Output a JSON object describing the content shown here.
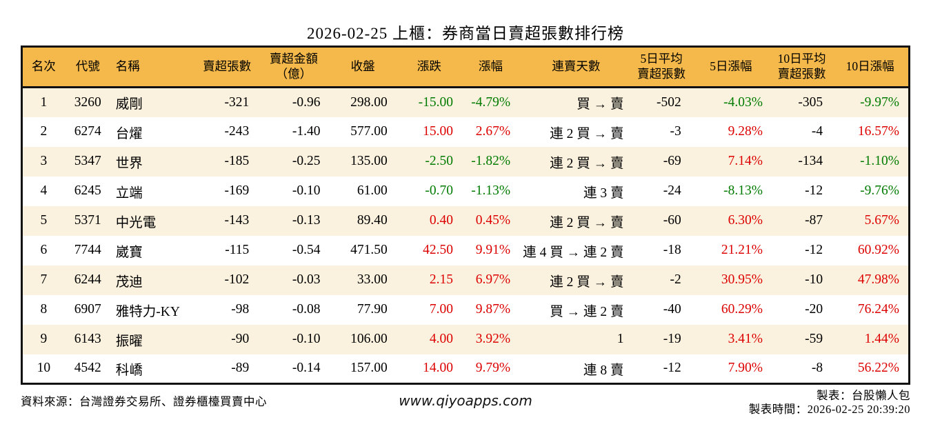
{
  "title": "2026-02-25 上櫃：券商當日賣超張數排行榜",
  "colors": {
    "header_bg": "#F4B94A",
    "alt_row_bg": "#FAF2DE",
    "up_red": "#DD0000",
    "down_green": "#007B00",
    "table_border": "#111111"
  },
  "table": {
    "columns": [
      {
        "label": "名次"
      },
      {
        "label": "代號"
      },
      {
        "label": "名稱"
      },
      {
        "label": "賣超張數"
      },
      {
        "label": "賣超金額\n（億）"
      },
      {
        "label": "收盤"
      },
      {
        "label": "漲跌"
      },
      {
        "label": "漲幅"
      },
      {
        "label": "連賣天數"
      },
      {
        "label": "5日平均\n賣超張數"
      },
      {
        "label": "5日漲幅"
      },
      {
        "label": "10日平均\n賣超張數"
      },
      {
        "label": "10日漲幅"
      }
    ],
    "rows": [
      {
        "rank": "1",
        "code": "3260",
        "name": "威剛",
        "net_sell": "-321",
        "net_sell_amount": "-0.96",
        "close": "298.00",
        "change": {
          "text": "-15.00",
          "color": "green"
        },
        "change_pct": {
          "text": "-4.79%",
          "color": "green"
        },
        "consecutive": "買 → 賣",
        "avg5_net_sell": "-502",
        "change5_pct": {
          "text": "-4.03%",
          "color": "green"
        },
        "avg10_net_sell": "-305",
        "change10_pct": {
          "text": "-9.97%",
          "color": "green"
        }
      },
      {
        "rank": "2",
        "code": "6274",
        "name": "台燿",
        "net_sell": "-243",
        "net_sell_amount": "-1.40",
        "close": "577.00",
        "change": {
          "text": "15.00",
          "color": "red"
        },
        "change_pct": {
          "text": "2.67%",
          "color": "red"
        },
        "consecutive": "連 2 買 → 賣",
        "avg5_net_sell": "-3",
        "change5_pct": {
          "text": "9.28%",
          "color": "red"
        },
        "avg10_net_sell": "-4",
        "change10_pct": {
          "text": "16.57%",
          "color": "red"
        }
      },
      {
        "rank": "3",
        "code": "5347",
        "name": "世界",
        "net_sell": "-185",
        "net_sell_amount": "-0.25",
        "close": "135.00",
        "change": {
          "text": "-2.50",
          "color": "green"
        },
        "change_pct": {
          "text": "-1.82%",
          "color": "green"
        },
        "consecutive": "連 2 買 → 賣",
        "avg5_net_sell": "-69",
        "change5_pct": {
          "text": "7.14%",
          "color": "red"
        },
        "avg10_net_sell": "-134",
        "change10_pct": {
          "text": "-1.10%",
          "color": "green"
        }
      },
      {
        "rank": "4",
        "code": "6245",
        "name": "立端",
        "net_sell": "-169",
        "net_sell_amount": "-0.10",
        "close": "61.00",
        "change": {
          "text": "-0.70",
          "color": "green"
        },
        "change_pct": {
          "text": "-1.13%",
          "color": "green"
        },
        "consecutive": "連 3 賣",
        "avg5_net_sell": "-24",
        "change5_pct": {
          "text": "-8.13%",
          "color": "green"
        },
        "avg10_net_sell": "-12",
        "change10_pct": {
          "text": "-9.76%",
          "color": "green"
        }
      },
      {
        "rank": "5",
        "code": "5371",
        "name": "中光電",
        "net_sell": "-143",
        "net_sell_amount": "-0.13",
        "close": "89.40",
        "change": {
          "text": "0.40",
          "color": "red"
        },
        "change_pct": {
          "text": "0.45%",
          "color": "red"
        },
        "consecutive": "連 2 買 → 賣",
        "avg5_net_sell": "-60",
        "change5_pct": {
          "text": "6.30%",
          "color": "red"
        },
        "avg10_net_sell": "-87",
        "change10_pct": {
          "text": "5.67%",
          "color": "red"
        }
      },
      {
        "rank": "6",
        "code": "7744",
        "name": "崴寶",
        "net_sell": "-115",
        "net_sell_amount": "-0.54",
        "close": "471.50",
        "change": {
          "text": "42.50",
          "color": "red"
        },
        "change_pct": {
          "text": "9.91%",
          "color": "red"
        },
        "consecutive": "連 4 買 → 連 2 賣",
        "avg5_net_sell": "-18",
        "change5_pct": {
          "text": "21.21%",
          "color": "red"
        },
        "avg10_net_sell": "-12",
        "change10_pct": {
          "text": "60.92%",
          "color": "red"
        }
      },
      {
        "rank": "7",
        "code": "6244",
        "name": "茂迪",
        "net_sell": "-102",
        "net_sell_amount": "-0.03",
        "close": "33.00",
        "change": {
          "text": "2.15",
          "color": "red"
        },
        "change_pct": {
          "text": "6.97%",
          "color": "red"
        },
        "consecutive": "連 2 買 → 賣",
        "avg5_net_sell": "-2",
        "change5_pct": {
          "text": "30.95%",
          "color": "red"
        },
        "avg10_net_sell": "-10",
        "change10_pct": {
          "text": "47.98%",
          "color": "red"
        }
      },
      {
        "rank": "8",
        "code": "6907",
        "name": "雅特力-KY",
        "net_sell": "-98",
        "net_sell_amount": "-0.08",
        "close": "77.90",
        "change": {
          "text": "7.00",
          "color": "red"
        },
        "change_pct": {
          "text": "9.87%",
          "color": "red"
        },
        "consecutive": "買 → 連 2 賣",
        "avg5_net_sell": "-40",
        "change5_pct": {
          "text": "60.29%",
          "color": "red"
        },
        "avg10_net_sell": "-20",
        "change10_pct": {
          "text": "76.24%",
          "color": "red"
        }
      },
      {
        "rank": "9",
        "code": "6143",
        "name": "振曜",
        "net_sell": "-90",
        "net_sell_amount": "-0.10",
        "close": "106.00",
        "change": {
          "text": "4.00",
          "color": "red"
        },
        "change_pct": {
          "text": "3.92%",
          "color": "red"
        },
        "consecutive": "1",
        "avg5_net_sell": "-19",
        "change5_pct": {
          "text": "3.41%",
          "color": "red"
        },
        "avg10_net_sell": "-59",
        "change10_pct": {
          "text": "1.44%",
          "color": "red"
        }
      },
      {
        "rank": "10",
        "code": "4542",
        "name": "科嶠",
        "net_sell": "-89",
        "net_sell_amount": "-0.14",
        "close": "157.00",
        "change": {
          "text": "14.00",
          "color": "red"
        },
        "change_pct": {
          "text": "9.79%",
          "color": "red"
        },
        "consecutive": "連 8 賣",
        "avg5_net_sell": "-12",
        "change5_pct": {
          "text": "7.90%",
          "color": "red"
        },
        "avg10_net_sell": "-8",
        "change10_pct": {
          "text": "56.22%",
          "color": "red"
        }
      }
    ]
  },
  "footer": {
    "source": "資料來源：台灣證券交易所、證券櫃檯買賣中心",
    "website": "www.qiyoapps.com",
    "maker": "製表：台股懶人包",
    "generated_at": "製表時間：2026-02-25 20:39:20"
  }
}
